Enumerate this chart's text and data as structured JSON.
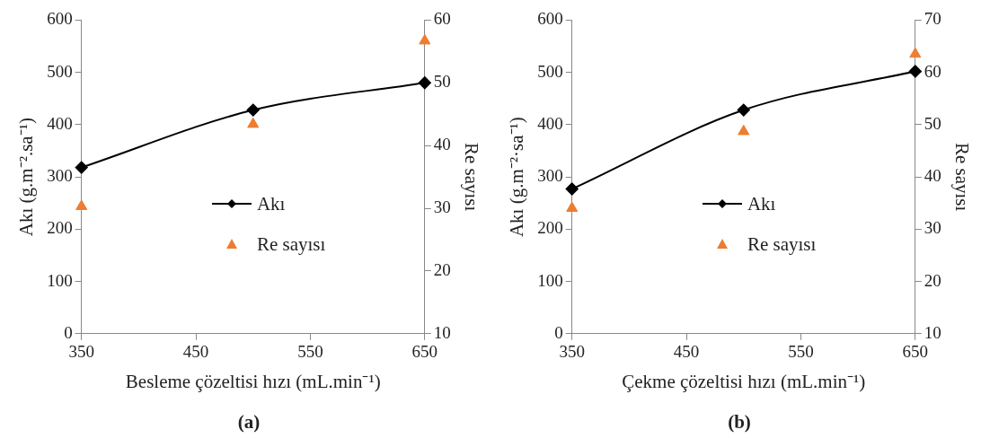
{
  "chart_data": [
    {
      "type": "line",
      "title": "(a)",
      "xlabel": "Besleme çözeltisi hızı (mL.min⁻¹)",
      "ylabel": "Akı (g.m⁻².sa⁻¹)",
      "y2label": "Re sayısı",
      "x": [
        350,
        500,
        650
      ],
      "xlim": [
        350,
        650
      ],
      "xticks": [
        350,
        450,
        550,
        650
      ],
      "ylim": [
        0,
        600
      ],
      "yticks": [
        0,
        100,
        200,
        300,
        400,
        500,
        600
      ],
      "y2lim": [
        10,
        60
      ],
      "y2ticks": [
        10,
        20,
        30,
        40,
        50,
        60
      ],
      "grid": false,
      "legend": "center",
      "series": [
        {
          "name": "Akı",
          "color": "#000000",
          "marker": "diamond",
          "values": [
            318,
            428,
            480
          ]
        },
        {
          "name": "Re sayısı",
          "type": "scatter",
          "axis": "y2",
          "color": "#ed7d31",
          "marker": "triangle",
          "values": [
            30.3,
            43.4,
            56.7
          ]
        }
      ]
    },
    {
      "type": "line",
      "title": "(b)",
      "xlabel": "Çekme çözeltisi hızı (mL.min⁻¹)",
      "ylabel": "Akı (g.m⁻²·sa⁻¹)",
      "y2label": "Re sayısı",
      "x": [
        350,
        500,
        650
      ],
      "xlim": [
        350,
        650
      ],
      "xticks": [
        350,
        450,
        550,
        650
      ],
      "ylim": [
        0,
        600
      ],
      "yticks": [
        0,
        100,
        200,
        300,
        400,
        500,
        600
      ],
      "y2lim": [
        10,
        70
      ],
      "y2ticks": [
        10,
        20,
        30,
        40,
        50,
        60,
        70
      ],
      "grid": false,
      "legend": "center",
      "series": [
        {
          "name": "Akı",
          "color": "#000000",
          "marker": "diamond",
          "values": [
            277,
            428,
            502
          ]
        },
        {
          "name": "Re sayısı",
          "type": "scatter",
          "axis": "y2",
          "color": "#ed7d31",
          "marker": "triangle",
          "values": [
            34,
            48.7,
            63.5
          ]
        }
      ]
    }
  ]
}
